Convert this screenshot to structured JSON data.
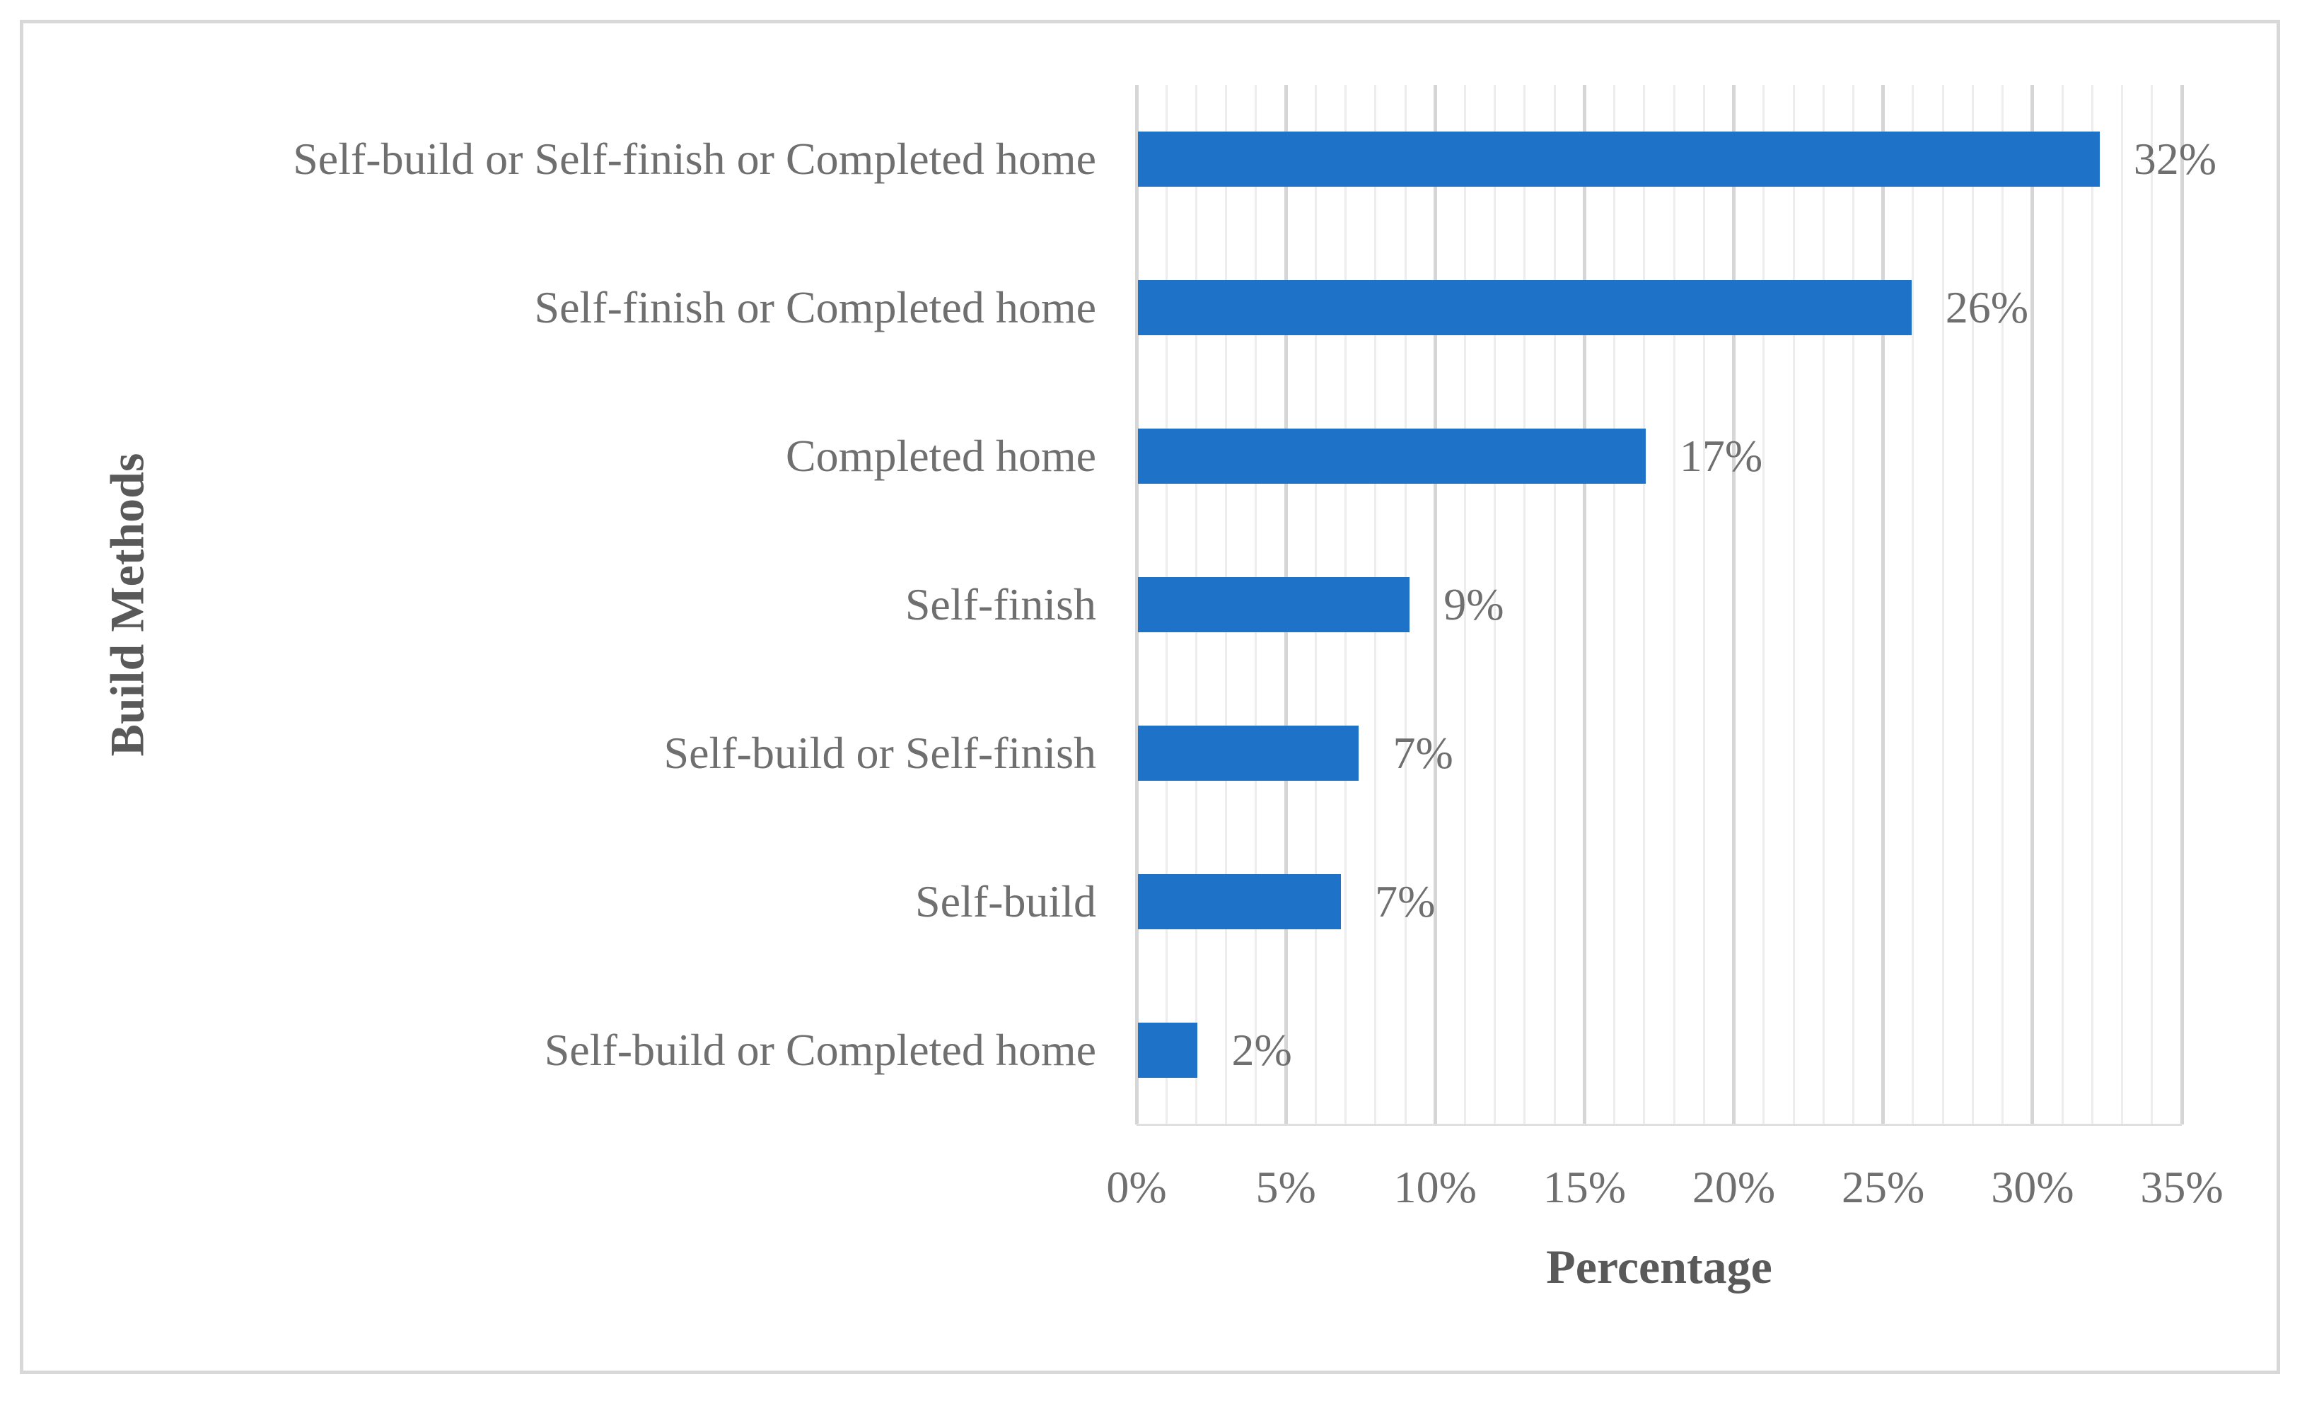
{
  "figure": {
    "background_color": "#FFFFFF",
    "border_color": "#D8D8D8"
  },
  "chart_data": {
    "type": "bar",
    "orientation": "horizontal",
    "title": "",
    "xlabel": "Percentage",
    "ylabel": "Build Methods",
    "categories": [
      "Self-build or Self-finish or Completed home",
      "Self-finish or Completed home",
      "Completed home",
      "Self-finish",
      "Self-build or Self-finish",
      "Self-build",
      "Self-build or Completed home"
    ],
    "values": [
      32,
      26,
      17,
      9,
      7,
      7,
      2
    ],
    "values_precise": [
      32.2,
      25.9,
      17.0,
      9.1,
      7.4,
      6.8,
      2.0
    ],
    "data_labels": [
      "32%",
      "26%",
      "17%",
      "9%",
      "7%",
      "7%",
      "2%"
    ],
    "xlim": [
      0,
      35
    ],
    "x_tick_values": [
      0,
      5,
      10,
      15,
      20,
      25,
      30,
      35
    ],
    "x_tick_labels": [
      "0%",
      "5%",
      "10%",
      "15%",
      "20%",
      "25%",
      "30%",
      "35%"
    ],
    "x_minor_step": 1,
    "x_major_step": 5,
    "grid": "vertical, minor every 1% and major every 5%, no horizontal gridlines",
    "legend": "none",
    "bar_color": "#1E73C8",
    "text_color": "#6F6F6F",
    "axis_title_color": "#595959",
    "gridline_minor_color": "#EDEDED",
    "gridline_major_color": "#D6D6D6"
  }
}
